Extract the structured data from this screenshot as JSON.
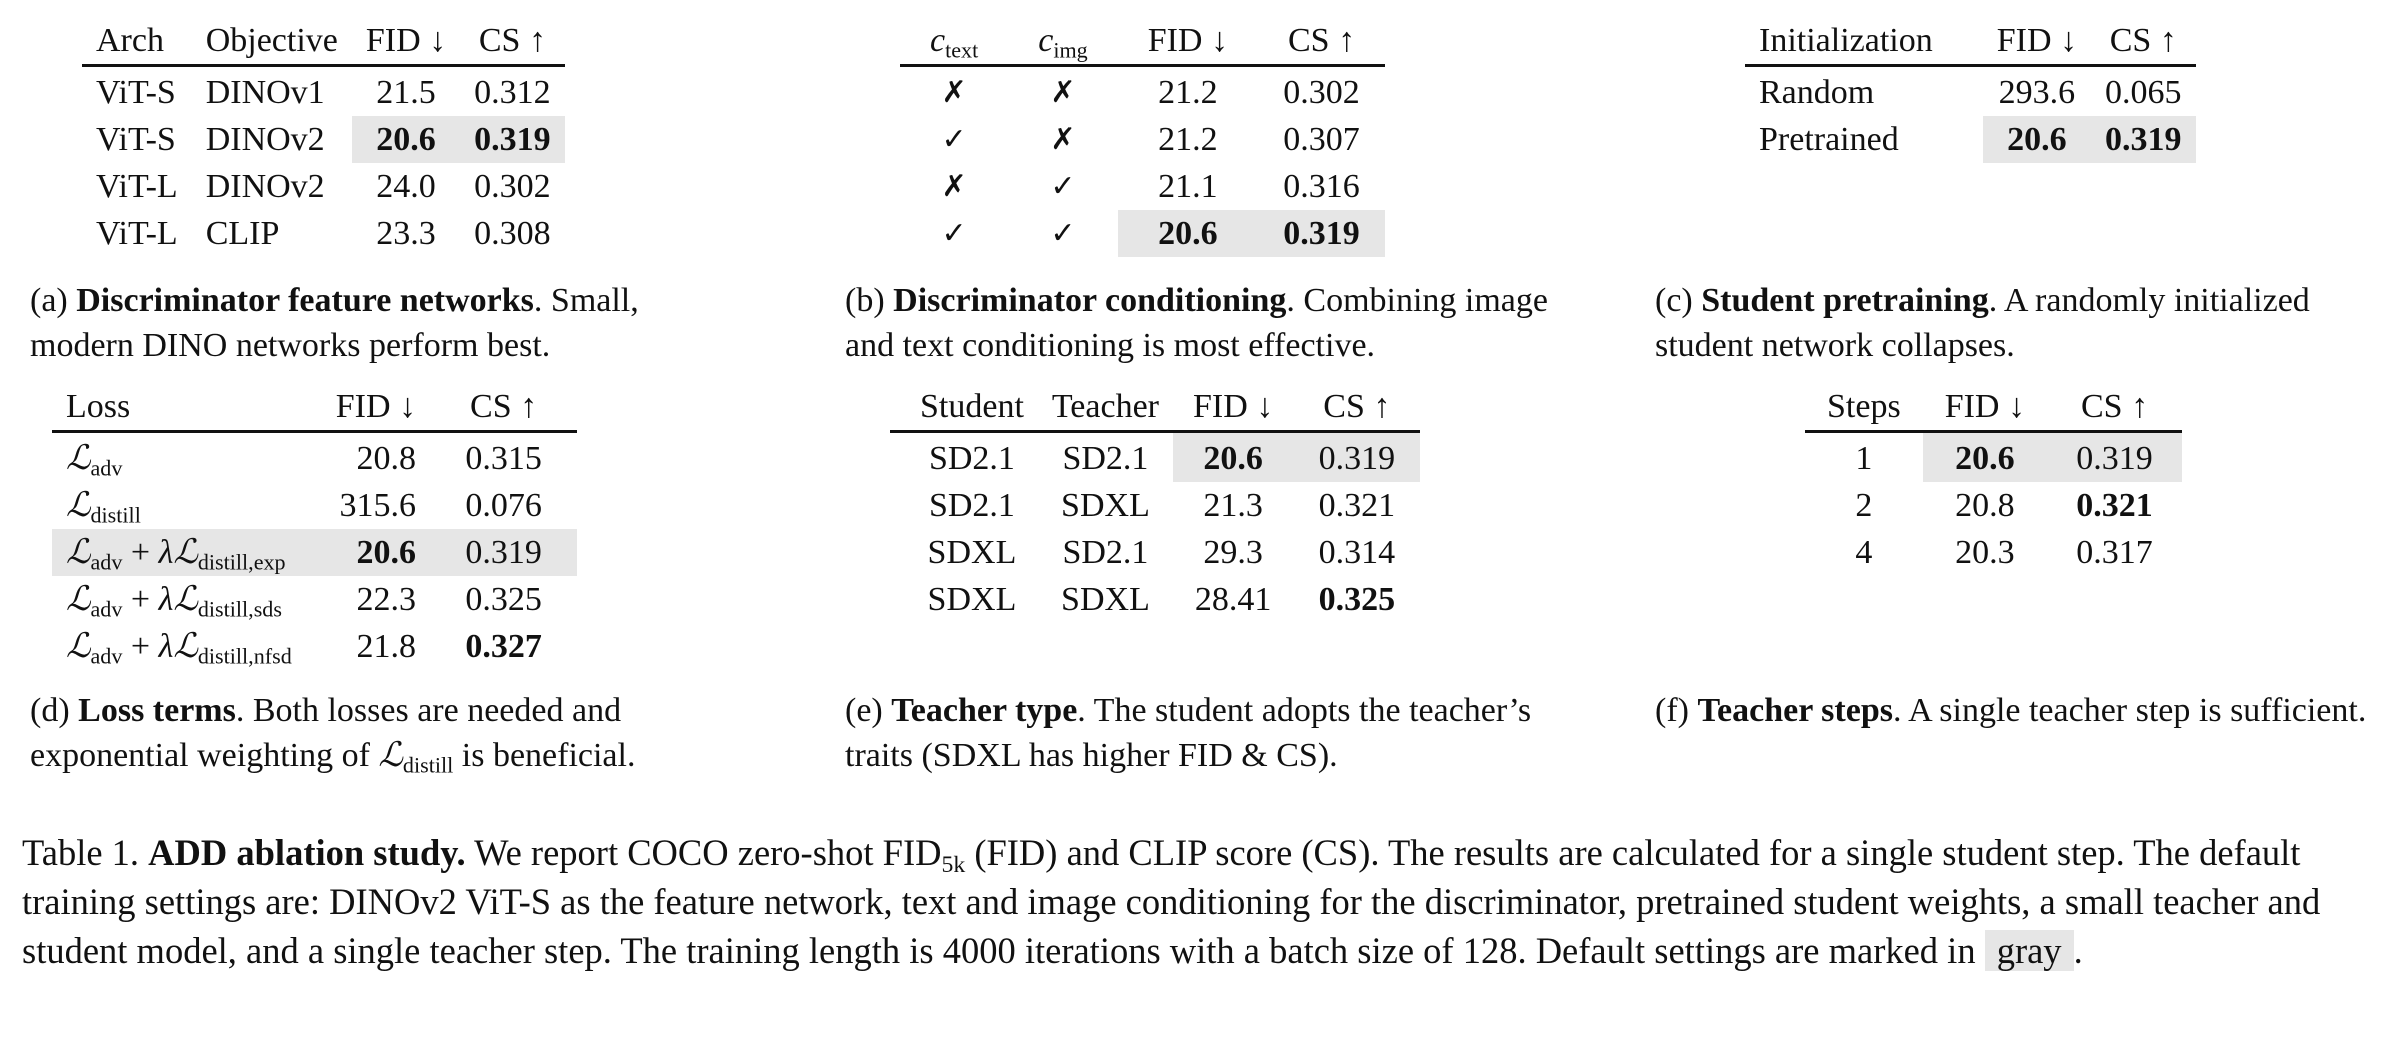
{
  "panel_a": {
    "headers": [
      "Arch",
      "Objective",
      "FID ↓",
      "CS ↑"
    ],
    "rows": [
      [
        "ViT-S",
        "DINOv1",
        "21.5",
        "0.312"
      ],
      [
        "ViT-S",
        "DINOv2",
        "20.6",
        "0.319"
      ],
      [
        "ViT-L",
        "DINOv2",
        "24.0",
        "0.302"
      ],
      [
        "ViT-L",
        "CLIP",
        "23.3",
        "0.308"
      ]
    ],
    "caption_label": "(a)",
    "caption_title": "Discriminator feature networks",
    "caption_text": ". Small, modern DINO networks perform best."
  },
  "panel_b": {
    "headers": [
      "c",
      "text",
      "c",
      "img",
      "FID ↓",
      "CS ↑"
    ],
    "rows": [
      [
        "✗",
        "✗",
        "21.2",
        "0.302"
      ],
      [
        "✓",
        "✗",
        "21.2",
        "0.307"
      ],
      [
        "✗",
        "✓",
        "21.1",
        "0.316"
      ],
      [
        "✓",
        "✓",
        "20.6",
        "0.319"
      ]
    ],
    "caption_label": "(b)",
    "caption_title": "Discriminator conditioning",
    "caption_text": ". Combining image and text conditioning is most effective."
  },
  "panel_c": {
    "headers": [
      "Initialization",
      "FID ↓",
      "CS ↑"
    ],
    "rows": [
      [
        "Random",
        "293.6",
        "0.065"
      ],
      [
        "Pretrained",
        "20.6",
        "0.319"
      ]
    ],
    "caption_label": "(c)",
    "caption_title": "Student pretraining",
    "caption_text": ". A randomly initialized student network collapses."
  },
  "panel_d": {
    "headers": [
      "Loss",
      "FID ↓",
      "CS ↑"
    ],
    "loss_symbol": "ℒ",
    "lambda_symbol": "λ",
    "plus": "+",
    "sub_adv": "adv",
    "sub_distill": "distill",
    "sub_exp": "distill,exp",
    "sub_sds": "distill,sds",
    "sub_nfsd": "distill,nfsd",
    "rows": [
      [
        "20.8",
        "0.315"
      ],
      [
        "315.6",
        "0.076"
      ],
      [
        "20.6",
        "0.319"
      ],
      [
        "22.3",
        "0.325"
      ],
      [
        "21.8",
        "0.327"
      ]
    ],
    "caption_label": "(d)",
    "caption_title": "Loss terms",
    "caption_text_1": ". Both losses are needed and exponential weighting of ",
    "caption_text_2": " is beneficial."
  },
  "panel_e": {
    "headers": [
      "Student",
      "Teacher",
      "FID ↓",
      "CS ↑"
    ],
    "rows": [
      [
        "SD2.1",
        "SD2.1",
        "20.6",
        "0.319"
      ],
      [
        "SD2.1",
        "SDXL",
        "21.3",
        "0.321"
      ],
      [
        "SDXL",
        "SD2.1",
        "29.3",
        "0.314"
      ],
      [
        "SDXL",
        "SDXL",
        "28.41",
        "0.325"
      ]
    ],
    "caption_label": "(e)",
    "caption_title": "Teacher type",
    "caption_text": ". The student adopts the teacher’s traits (SDXL has higher FID & CS)."
  },
  "panel_f": {
    "headers": [
      "Steps",
      "FID ↓",
      "CS ↑"
    ],
    "rows": [
      [
        "1",
        "20.6",
        "0.319"
      ],
      [
        "2",
        "20.8",
        "0.321"
      ],
      [
        "4",
        "20.3",
        "0.317"
      ]
    ],
    "caption_label": "(f)",
    "caption_title": "Teacher steps",
    "caption_text": ". A single teacher step is sufficient."
  },
  "table_caption": {
    "label": "Table 1.",
    "title": "ADD ablation study.",
    "text_1": " We report COCO zero-shot FID",
    "fid_sub": "5k",
    "text_2": " (FID) and CLIP score (CS). The results are calculated for a single student step. The default training settings are: DINOv2 ViT-S as the feature network, text and image conditioning for the discriminator, pretrained student weights, a small teacher and student model, and a single teacher step. The training length is 4000 iterations with a batch size of 128. Default settings are marked in ",
    "gray_word": "gray",
    "text_3": "."
  }
}
